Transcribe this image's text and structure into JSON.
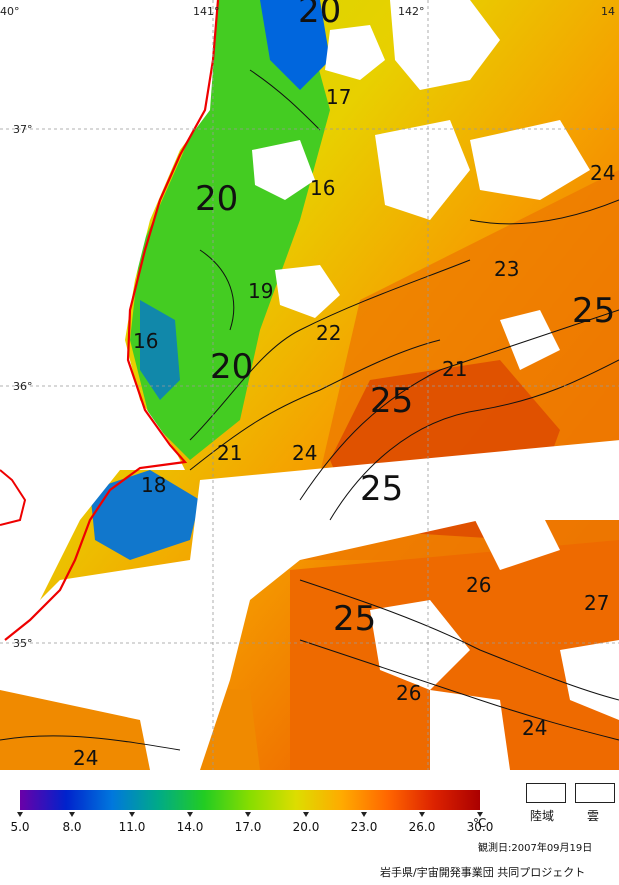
{
  "map": {
    "lon_labels": [
      "40°",
      "141°",
      "142°",
      "14"
    ],
    "lat_labels": [
      "37°",
      "36°",
      "35°"
    ],
    "contour_labels": [
      {
        "text": "20",
        "size": "large"
      },
      {
        "text": "17",
        "size": "small"
      },
      {
        "text": "16",
        "size": "small"
      },
      {
        "text": "20",
        "size": "large"
      },
      {
        "text": "24",
        "size": "small"
      },
      {
        "text": "19",
        "size": "small"
      },
      {
        "text": "23",
        "size": "small"
      },
      {
        "text": "25",
        "size": "large"
      },
      {
        "text": "16",
        "size": "small"
      },
      {
        "text": "22",
        "size": "small"
      },
      {
        "text": "20",
        "size": "large"
      },
      {
        "text": "21",
        "size": "small"
      },
      {
        "text": "25",
        "size": "large"
      },
      {
        "text": "21",
        "size": "small"
      },
      {
        "text": "24",
        "size": "small"
      },
      {
        "text": "18",
        "size": "small"
      },
      {
        "text": "25",
        "size": "large"
      },
      {
        "text": "26",
        "size": "small"
      },
      {
        "text": "27",
        "size": "small"
      },
      {
        "text": "25",
        "size": "large"
      },
      {
        "text": "26",
        "size": "small"
      },
      {
        "text": "24",
        "size": "small"
      },
      {
        "text": "24",
        "size": "small"
      }
    ]
  },
  "legend": {
    "colorbar_ticks": [
      "5.0",
      "8.0",
      "11.0",
      "14.0",
      "17.0",
      "20.0",
      "23.0",
      "26.0",
      "30.0"
    ],
    "unit": "℃",
    "land_label": "陸域",
    "cloud_label": "雲",
    "colors": [
      "#6a00a8",
      "#0022cc",
      "#0077dd",
      "#00aa88",
      "#22cc22",
      "#88dd00",
      "#dddd00",
      "#ffaa00",
      "#ff6600",
      "#dd2200",
      "#aa0000"
    ]
  },
  "observation_date": "観測日:2007年09月19日",
  "credit": "岩手県/宇宙開発事業団 共同プロジェクト"
}
